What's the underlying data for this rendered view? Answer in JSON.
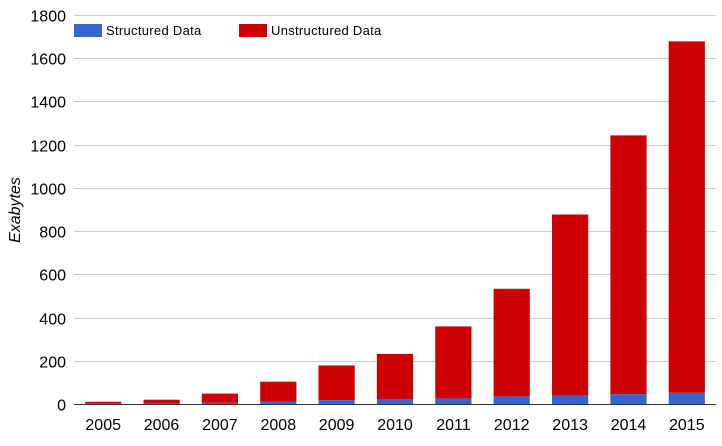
{
  "chart_data": {
    "type": "bar",
    "stacked": true,
    "categories": [
      "2005",
      "2006",
      "2007",
      "2008",
      "2009",
      "2010",
      "2011",
      "2012",
      "2013",
      "2014",
      "2015"
    ],
    "series": [
      {
        "name": "Structured Data",
        "color": "#3366cc",
        "values": [
          1,
          3,
          6,
          12,
          18,
          22,
          26,
          34,
          40,
          46,
          52
        ]
      },
      {
        "name": "Unstructured Data",
        "color": "#cc0000",
        "values": [
          9,
          17,
          42,
          91,
          160,
          210,
          333,
          499,
          837,
          1197,
          1626
        ]
      }
    ],
    "title": "",
    "xlabel": "",
    "ylabel": "Exabytes",
    "ylim": [
      0,
      1800
    ],
    "yticks": [
      "0",
      "200",
      "400",
      "600",
      "800",
      "1000",
      "1200",
      "1400",
      "1600",
      "1800"
    ],
    "grid": true,
    "legend": "top-left"
  }
}
